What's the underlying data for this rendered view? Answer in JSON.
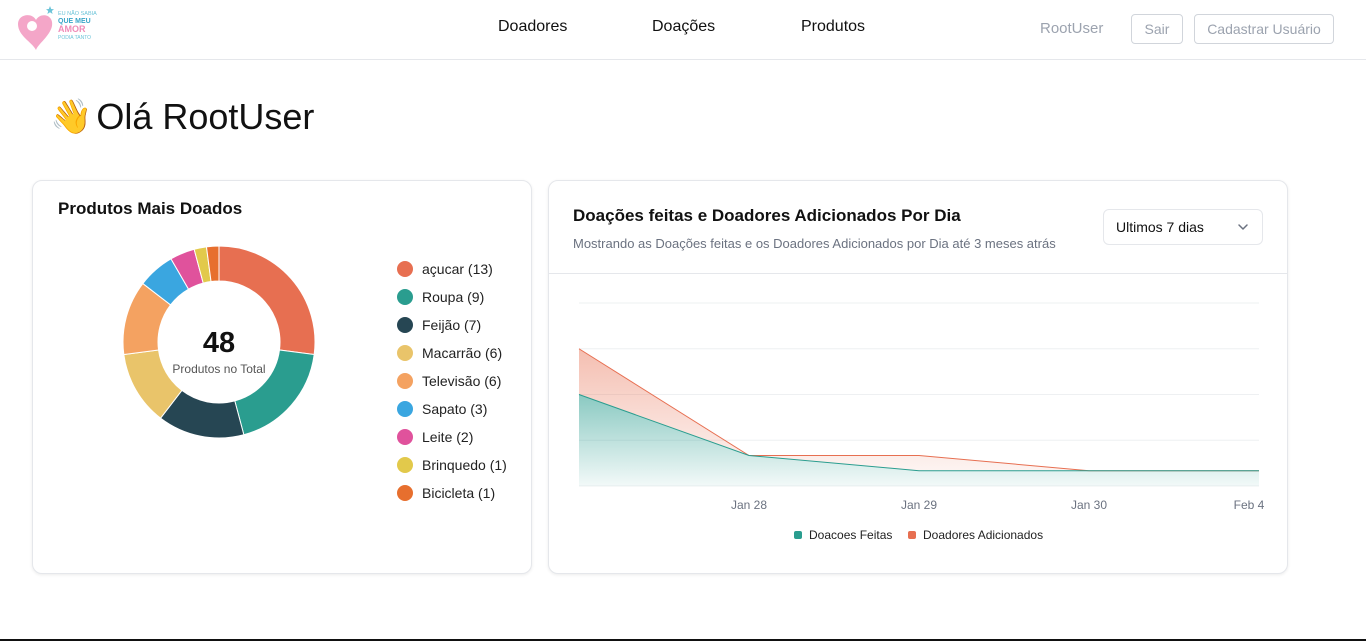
{
  "header": {
    "logo_text": [
      "EU NÃO SABIA",
      "QUE MEU",
      "AMOR",
      "PODIA TANTO"
    ],
    "nav": [
      "Doadores",
      "Doações",
      "Produtos"
    ],
    "user": "RootUser",
    "logout_label": "Sair",
    "register_label": "Cadastrar Usuário"
  },
  "greeting": {
    "emoji": "👋",
    "text": "Olá RootUser"
  },
  "products_card": {
    "title": "Produtos Mais Doados",
    "total": "48",
    "total_label": "Produtos no Total",
    "items": [
      {
        "label": "açucar (13)",
        "name": "açucar",
        "value": 13,
        "color": "#e76f51"
      },
      {
        "label": "Roupa (9)",
        "name": "Roupa",
        "value": 9,
        "color": "#2a9d8f"
      },
      {
        "label": "Feijão (7)",
        "name": "Feijão",
        "value": 7,
        "color": "#264653"
      },
      {
        "label": "Macarrão (6)",
        "name": "Macarrão",
        "value": 6,
        "color": "#e9c46a"
      },
      {
        "label": "Televisão (6)",
        "name": "Televisão",
        "value": 6,
        "color": "#f4a261"
      },
      {
        "label": "Sapato (3)",
        "name": "Sapato",
        "value": 3,
        "color": "#3aa6e0"
      },
      {
        "label": "Leite (2)",
        "name": "Leite",
        "value": 2,
        "color": "#e0529c"
      },
      {
        "label": "Brinquedo (1)",
        "name": "Brinquedo",
        "value": 1,
        "color": "#e2c94b"
      },
      {
        "label": "Bicicleta (1)",
        "name": "Bicicleta",
        "value": 1,
        "color": "#e76f2e"
      }
    ]
  },
  "daily_card": {
    "title": "Doações feitas e Doadores Adicionados Por Dia",
    "subtitle": "Mostrando as Doações feitas e os Doadores Adicionados por Dia até 3 meses atrás",
    "range_select": "Ultimos 7 dias",
    "series_labels": [
      "Doacoes Feitas",
      "Doadores Adicionados"
    ]
  },
  "chart_data": [
    {
      "type": "pie",
      "title": "Produtos Mais Doados",
      "categories": [
        "açucar",
        "Roupa",
        "Feijão",
        "Macarrão",
        "Televisão",
        "Sapato",
        "Leite",
        "Brinquedo",
        "Bicicleta"
      ],
      "values": [
        13,
        9,
        7,
        6,
        6,
        3,
        2,
        1,
        1
      ],
      "legend": "right"
    },
    {
      "type": "area",
      "title": "Doações feitas e Doadores Adicionados Por Dia",
      "x": [
        "",
        "Jan 28",
        "Jan 29",
        "Jan 30",
        "Feb 4"
      ],
      "series": [
        {
          "name": "Doacoes Feitas",
          "values": [
            6,
            2,
            1,
            1,
            1
          ],
          "color": "#2a9d8f"
        },
        {
          "name": "Doadores Adicionados",
          "values": [
            3,
            0,
            1,
            0,
            0
          ],
          "color": "#e76f51"
        }
      ],
      "stacked": true,
      "ylim": [
        0,
        12
      ],
      "grid": true,
      "legend": "bottom"
    }
  ]
}
